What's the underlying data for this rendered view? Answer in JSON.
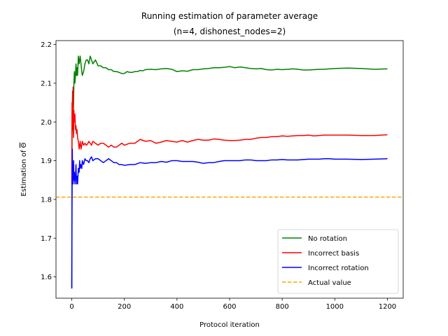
{
  "chart_data": {
    "type": "line",
    "title_line1": "Running estimation of parameter average",
    "title_line2": "(n=4, dishonest_nodes=2)",
    "xlabel": "Protocol iteration",
    "ylabel_prefix": "Estimation of",
    "ylabel_symbol": "Θ",
    "xlim": [
      -60,
      1260
    ],
    "ylim": [
      1.545,
      2.21
    ],
    "xticks": [
      0,
      200,
      400,
      600,
      800,
      1000,
      1200
    ],
    "yticks": [
      1.6,
      1.7,
      1.8,
      1.9,
      2.0,
      2.1,
      2.2
    ],
    "xtick_labels": [
      "0",
      "200",
      "400",
      "600",
      "800",
      "1000",
      "1200"
    ],
    "ytick_labels": [
      "1.6",
      "1.7",
      "1.8",
      "1.9",
      "2.0",
      "2.1",
      "2.2"
    ],
    "grid": false,
    "legend_position": "lower-right",
    "series": [
      {
        "name": "No rotation",
        "color": "#008000",
        "style": "solid",
        "x": [
          0,
          1,
          2,
          3,
          4,
          5,
          6,
          7,
          8,
          10,
          12,
          14,
          16,
          18,
          20,
          22,
          25,
          28,
          30,
          32,
          35,
          38,
          40,
          45,
          50,
          55,
          60,
          65,
          70,
          75,
          80,
          90,
          100,
          110,
          120,
          130,
          140,
          150,
          160,
          170,
          180,
          190,
          200,
          210,
          220,
          230,
          240,
          250,
          260,
          270,
          280,
          300,
          320,
          340,
          360,
          380,
          400,
          420,
          440,
          460,
          480,
          500,
          520,
          540,
          560,
          580,
          600,
          620,
          640,
          660,
          680,
          700,
          720,
          740,
          760,
          780,
          800,
          820,
          840,
          860,
          880,
          900,
          920,
          940,
          960,
          980,
          1000,
          1050,
          1100,
          1150,
          1200
        ],
        "y": [
          1.57,
          1.95,
          2.05,
          1.98,
          2.05,
          2.07,
          2.03,
          2.05,
          2.1,
          2.13,
          2.1,
          2.12,
          2.15,
          2.12,
          2.14,
          2.12,
          2.17,
          2.15,
          2.16,
          2.17,
          2.15,
          2.13,
          2.12,
          2.13,
          2.15,
          2.16,
          2.16,
          2.15,
          2.17,
          2.16,
          2.15,
          2.16,
          2.145,
          2.145,
          2.14,
          2.14,
          2.135,
          2.135,
          2.13,
          2.13,
          2.128,
          2.125,
          2.125,
          2.13,
          2.128,
          2.128,
          2.13,
          2.13,
          2.133,
          2.132,
          2.135,
          2.136,
          2.135,
          2.137,
          2.138,
          2.136,
          2.13,
          2.132,
          2.131,
          2.135,
          2.135,
          2.137,
          2.138,
          2.14,
          2.14,
          2.141,
          2.143,
          2.14,
          2.142,
          2.14,
          2.138,
          2.137,
          2.138,
          2.135,
          2.134,
          2.136,
          2.135,
          2.136,
          2.137,
          2.136,
          2.134,
          2.134,
          2.135,
          2.136,
          2.136,
          2.137,
          2.138,
          2.139,
          2.138,
          2.136,
          2.137
        ]
      },
      {
        "name": "Incorrect basis",
        "color": "#ff0000",
        "style": "solid",
        "x": [
          0,
          1,
          2,
          3,
          4,
          5,
          6,
          7,
          8,
          10,
          12,
          14,
          16,
          18,
          20,
          22,
          25,
          28,
          30,
          32,
          35,
          38,
          40,
          45,
          50,
          55,
          60,
          65,
          70,
          75,
          80,
          90,
          100,
          110,
          120,
          130,
          140,
          150,
          160,
          170,
          180,
          190,
          200,
          220,
          240,
          260,
          280,
          300,
          320,
          340,
          360,
          380,
          400,
          420,
          440,
          460,
          480,
          500,
          520,
          540,
          560,
          580,
          600,
          620,
          640,
          660,
          680,
          700,
          720,
          740,
          760,
          780,
          800,
          820,
          840,
          860,
          880,
          900,
          920,
          940,
          960,
          980,
          1000,
          1050,
          1100,
          1150,
          1200
        ],
        "y": [
          1.84,
          2.05,
          2.03,
          2.08,
          1.99,
          2.09,
          1.98,
          1.96,
          2.03,
          2.0,
          2.02,
          1.98,
          1.99,
          1.97,
          1.98,
          1.96,
          1.95,
          1.93,
          1.94,
          1.95,
          1.93,
          1.94,
          1.95,
          1.94,
          1.945,
          1.94,
          1.943,
          1.95,
          1.945,
          1.94,
          1.95,
          1.945,
          1.94,
          1.945,
          1.945,
          1.94,
          1.935,
          1.94,
          1.935,
          1.935,
          1.94,
          1.945,
          1.94,
          1.945,
          1.945,
          1.955,
          1.95,
          1.952,
          1.945,
          1.948,
          1.952,
          1.95,
          1.948,
          1.952,
          1.948,
          1.952,
          1.955,
          1.953,
          1.953,
          1.956,
          1.955,
          1.953,
          1.952,
          1.952,
          1.953,
          1.955,
          1.955,
          1.958,
          1.96,
          1.96,
          1.962,
          1.962,
          1.964,
          1.963,
          1.964,
          1.965,
          1.965,
          1.966,
          1.964,
          1.965,
          1.966,
          1.966,
          1.966,
          1.966,
          1.965,
          1.965,
          1.967
        ]
      },
      {
        "name": "Incorrect rotation",
        "color": "#0000ff",
        "style": "solid",
        "x": [
          0,
          1,
          2,
          3,
          4,
          5,
          6,
          7,
          8,
          10,
          12,
          14,
          16,
          18,
          20,
          22,
          25,
          28,
          30,
          32,
          35,
          38,
          40,
          45,
          50,
          55,
          60,
          65,
          70,
          75,
          80,
          90,
          100,
          110,
          120,
          130,
          140,
          150,
          160,
          170,
          180,
          190,
          200,
          220,
          240,
          260,
          280,
          300,
          320,
          340,
          360,
          380,
          400,
          420,
          440,
          460,
          480,
          500,
          520,
          540,
          560,
          580,
          600,
          620,
          640,
          660,
          680,
          700,
          720,
          740,
          760,
          780,
          800,
          820,
          840,
          860,
          880,
          900,
          920,
          940,
          960,
          980,
          1000,
          1050,
          1100,
          1150,
          1200
        ],
        "y": [
          1.57,
          1.79,
          1.93,
          1.85,
          1.88,
          1.84,
          1.86,
          1.9,
          1.85,
          1.87,
          1.84,
          1.86,
          1.89,
          1.84,
          1.86,
          1.84,
          1.88,
          1.87,
          1.9,
          1.88,
          1.89,
          1.88,
          1.9,
          1.89,
          1.905,
          1.9,
          1.9,
          1.895,
          1.905,
          1.91,
          1.9,
          1.905,
          1.905,
          1.9,
          1.895,
          1.9,
          1.905,
          1.9,
          1.895,
          1.895,
          1.89,
          1.89,
          1.888,
          1.89,
          1.89,
          1.895,
          1.893,
          1.895,
          1.895,
          1.898,
          1.896,
          1.9,
          1.9,
          1.898,
          1.898,
          1.898,
          1.896,
          1.893,
          1.895,
          1.895,
          1.898,
          1.9,
          1.9,
          1.9,
          1.9,
          1.902,
          1.902,
          1.9,
          1.9,
          1.9,
          1.902,
          1.902,
          1.903,
          1.902,
          1.902,
          1.902,
          1.903,
          1.904,
          1.904,
          1.904,
          1.905,
          1.905,
          1.904,
          1.904,
          1.903,
          1.904,
          1.905
        ]
      },
      {
        "name": "Actual value",
        "color": "#ffa500",
        "style": "dashed",
        "x": [
          -60,
          1260
        ],
        "y": [
          1.806,
          1.806
        ]
      }
    ]
  }
}
